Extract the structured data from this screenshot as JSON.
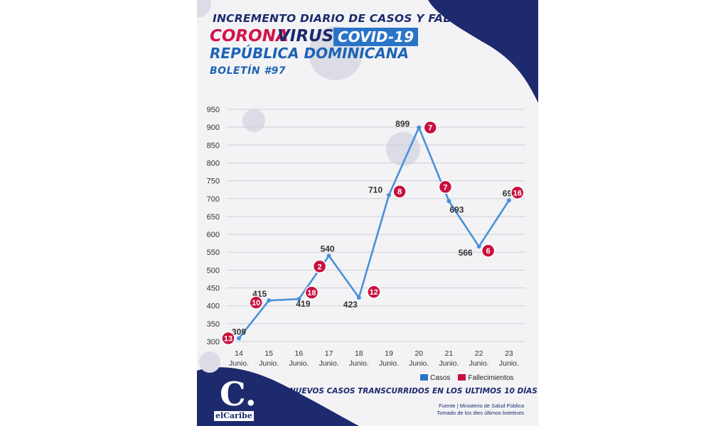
{
  "header": {
    "title": "INCREMENTO DIARIO DE CASOS Y FALLECIMIENTOS",
    "corona": "CORONA",
    "virus": "VIRUS",
    "covid": "COVID-19",
    "country": "REPÚBLICA DOMINICANA",
    "bulletin": "BOLETÍN #97"
  },
  "chart_data": {
    "type": "line",
    "categories": [
      "14",
      "15",
      "16",
      "17",
      "18",
      "19",
      "20",
      "21",
      "22",
      "23"
    ],
    "category_sublabel": "Junio.",
    "series": [
      {
        "name": "Casos",
        "values": [
          309,
          415,
          419,
          540,
          423,
          710,
          899,
          693,
          566,
          695
        ]
      },
      {
        "name": "Fallecimientos",
        "values": [
          13,
          10,
          18,
          2,
          12,
          8,
          7,
          7,
          6,
          16
        ]
      }
    ],
    "y_ticks": [
      300,
      350,
      400,
      450,
      500,
      550,
      600,
      650,
      700,
      750,
      800,
      850,
      900,
      950
    ],
    "ylim": [
      300,
      950
    ],
    "grid": true,
    "legend": "bottom-right",
    "colors": {
      "casos": "#4a90d9",
      "fallecimientos": "#c8103e"
    }
  },
  "footer": {
    "subtitle": "NUEVOS CASOS TRANSCURRIDOS EN LOS ULTIMOS 10 DÍAS",
    "source_line1": "Fuente | Ministerio de Salud Pública",
    "source_line2": "Tomado de  los dies últimos boletines",
    "logo_letter": "C.",
    "logo_text": "elCaribe"
  }
}
